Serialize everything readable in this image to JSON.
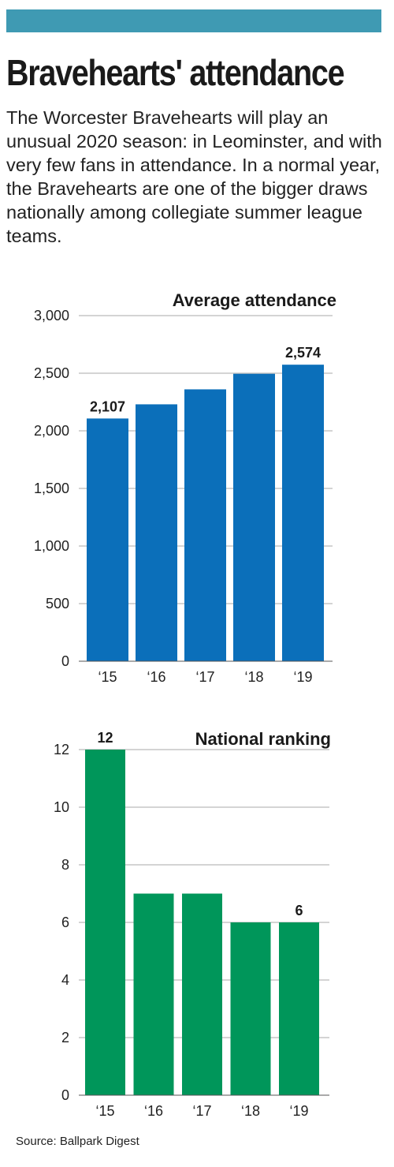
{
  "header": {
    "accent_color": "#3f9ab3",
    "headline": "Bravehearts' attendance",
    "intro": "The Worcester Bravehearts will play an unusual 2020 season: in Leominster, and with very few fans in attendance. In a normal year, the Bravehearts are one of the bigger draws nationally among collegiate summer league teams."
  },
  "chart_data": [
    {
      "type": "bar",
      "title": "Average attendance",
      "categories": [
        "‘15",
        "‘16",
        "‘17",
        "‘18",
        "‘19"
      ],
      "values": [
        2107,
        2230,
        2360,
        2495,
        2574
      ],
      "data_labels": [
        "2,107",
        "",
        "",
        "",
        "2,574"
      ],
      "yticks": [
        0,
        500,
        1000,
        1500,
        2000,
        2500,
        3000
      ],
      "ytick_labels": [
        "0",
        "500",
        "1,000",
        "1,500",
        "2,000",
        "2,500",
        "3,000"
      ],
      "ylim": [
        0,
        3000
      ],
      "color": "#0b6fba",
      "grid": true
    },
    {
      "type": "bar",
      "title": "National ranking",
      "categories": [
        "‘15",
        "‘16",
        "‘17",
        "‘18",
        "‘19"
      ],
      "values": [
        12,
        7,
        7,
        6,
        6
      ],
      "data_labels": [
        "12",
        "",
        "",
        "",
        "6"
      ],
      "yticks": [
        0,
        2,
        4,
        6,
        8,
        10,
        12
      ],
      "ytick_labels": [
        "0",
        "2",
        "4",
        "6",
        "8",
        "10",
        "12"
      ],
      "ylim": [
        0,
        12
      ],
      "color": "#00965a",
      "grid": true
    }
  ],
  "footer": {
    "source": "Source: Ballpark Digest"
  }
}
